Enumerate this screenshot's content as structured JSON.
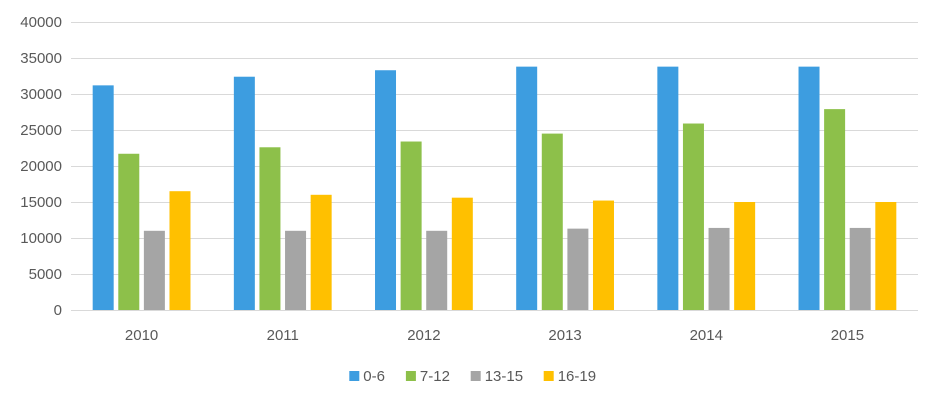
{
  "chart_data": {
    "type": "bar",
    "title": "",
    "xlabel": "",
    "ylabel": "",
    "categories": [
      "2010",
      "2011",
      "2012",
      "2013",
      "2014",
      "2015"
    ],
    "series": [
      {
        "name": "0-6",
        "color": "#3d9de0",
        "values": [
          31200,
          32400,
          33300,
          33800,
          33800,
          33800
        ]
      },
      {
        "name": "7-12",
        "color": "#8dc04a",
        "values": [
          21700,
          22600,
          23400,
          24500,
          25900,
          27900
        ]
      },
      {
        "name": "13-15",
        "color": "#a5a5a5",
        "values": [
          11000,
          11000,
          11000,
          11300,
          11400,
          11400
        ]
      },
      {
        "name": "16-19",
        "color": "#ffc000",
        "values": [
          16500,
          16000,
          15600,
          15200,
          15000,
          15000
        ]
      }
    ],
    "ylim": [
      0,
      40000
    ],
    "yticks": [
      0,
      5000,
      10000,
      15000,
      20000,
      25000,
      30000,
      35000,
      40000
    ],
    "grid": true,
    "legend_position": "bottom"
  }
}
